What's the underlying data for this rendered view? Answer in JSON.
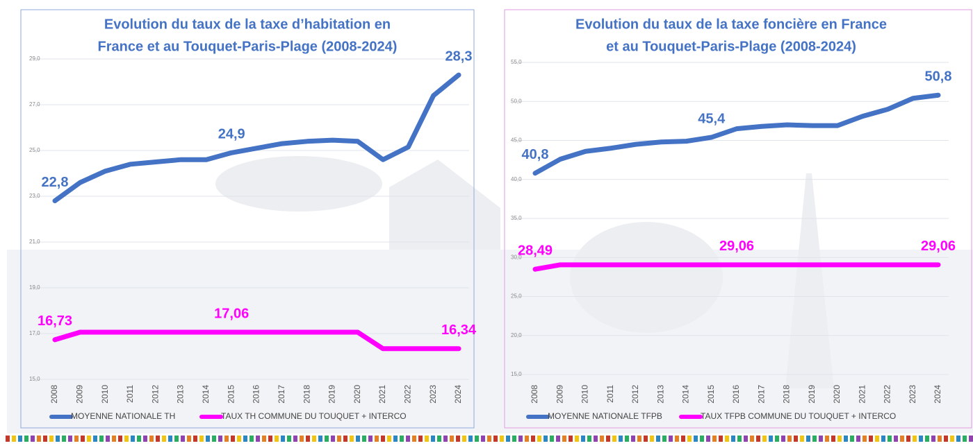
{
  "chart_data": [
    {
      "type": "line",
      "title": [
        "Evolution du taux de la taxe d’habitation en",
        "France et au Touquet-Paris-Plage (2008-2024)"
      ],
      "categories": [
        "2008",
        "2009",
        "2010",
        "2011",
        "2012",
        "2013",
        "2014",
        "2015",
        "2016",
        "2017",
        "2018",
        "2019",
        "2020",
        "2021",
        "2022",
        "2023",
        "2024"
      ],
      "ylim": [
        15,
        29
      ],
      "yticks": [
        {
          "value": 15,
          "label": "15,0"
        },
        {
          "value": 17,
          "label": "17,0"
        },
        {
          "value": 19,
          "label": "19,0"
        },
        {
          "value": 21,
          "label": "21,0"
        },
        {
          "value": 23,
          "label": "23,0"
        },
        {
          "value": 25,
          "label": "25,0"
        },
        {
          "value": 27,
          "label": "27,0"
        },
        {
          "value": 29,
          "label": "29,0"
        }
      ],
      "grid": true,
      "series": [
        {
          "name": "MOYENNE NATIONALE TH",
          "color": "#4472c4",
          "values": [
            22.8,
            23.6,
            24.1,
            24.4,
            24.5,
            24.6,
            24.6,
            24.9,
            25.1,
            25.3,
            25.4,
            25.45,
            25.4,
            24.6,
            25.15,
            27.4,
            28.3
          ],
          "value_labels": [
            "22,8",
            null,
            null,
            null,
            null,
            null,
            null,
            "24,9",
            null,
            null,
            null,
            null,
            null,
            null,
            null,
            null,
            "28,3"
          ]
        },
        {
          "name": "TAUX TH COMMUNE DU TOUQUET + INTERCO",
          "color": "#ff00ff",
          "values": [
            16.73,
            17.06,
            17.06,
            17.06,
            17.06,
            17.06,
            17.06,
            17.06,
            17.06,
            17.06,
            17.06,
            17.06,
            17.06,
            16.34,
            16.34,
            16.34,
            16.34
          ],
          "value_labels": [
            "16,73",
            null,
            null,
            null,
            null,
            null,
            null,
            "17,06",
            null,
            null,
            null,
            null,
            null,
            null,
            null,
            null,
            "16,34"
          ]
        }
      ]
    },
    {
      "type": "line",
      "title": [
        "Evolution du taux de la taxe foncière en France",
        "et au Touquet-Paris-Plage (2008-2024)"
      ],
      "categories": [
        "2008",
        "2009",
        "2010",
        "2011",
        "2012",
        "2013",
        "2014",
        "2015",
        "2016",
        "2017",
        "2018",
        "2019",
        "2020",
        "2021",
        "2022",
        "2023",
        "2024"
      ],
      "ylim": [
        15,
        55
      ],
      "yticks": [
        {
          "value": 15,
          "label": "15,0"
        },
        {
          "value": 20,
          "label": "20,0"
        },
        {
          "value": 25,
          "label": "25,0"
        },
        {
          "value": 30,
          "label": "30,0"
        },
        {
          "value": 35,
          "label": "35,0"
        },
        {
          "value": 40,
          "label": "40,0"
        },
        {
          "value": 45,
          "label": "45,0"
        },
        {
          "value": 50,
          "label": "50,0"
        },
        {
          "value": 55,
          "label": "55,0"
        }
      ],
      "grid": true,
      "series": [
        {
          "name": "MOYENNE NATIONALE TFPB",
          "color": "#4472c4",
          "values": [
            40.8,
            42.6,
            43.6,
            44.0,
            44.5,
            44.8,
            44.9,
            45.4,
            46.5,
            46.8,
            47.0,
            46.9,
            46.9,
            48.1,
            49.0,
            50.4,
            50.8
          ],
          "value_labels": [
            "40,8",
            null,
            null,
            null,
            null,
            null,
            null,
            "45,4",
            null,
            null,
            null,
            null,
            null,
            null,
            null,
            null,
            "50,8"
          ]
        },
        {
          "name": "TAUX TFPB COMMUNE DU TOUQUET + INTERCO",
          "color": "#ff00ff",
          "values": [
            28.49,
            29.06,
            29.06,
            29.06,
            29.06,
            29.06,
            29.06,
            29.06,
            29.06,
            29.06,
            29.06,
            29.06,
            29.06,
            29.06,
            29.06,
            29.06,
            29.06
          ],
          "value_labels": [
            "28,49",
            null,
            null,
            null,
            null,
            null,
            null,
            null,
            "29,06",
            null,
            null,
            null,
            null,
            null,
            null,
            null,
            "29,06"
          ]
        }
      ]
    }
  ]
}
